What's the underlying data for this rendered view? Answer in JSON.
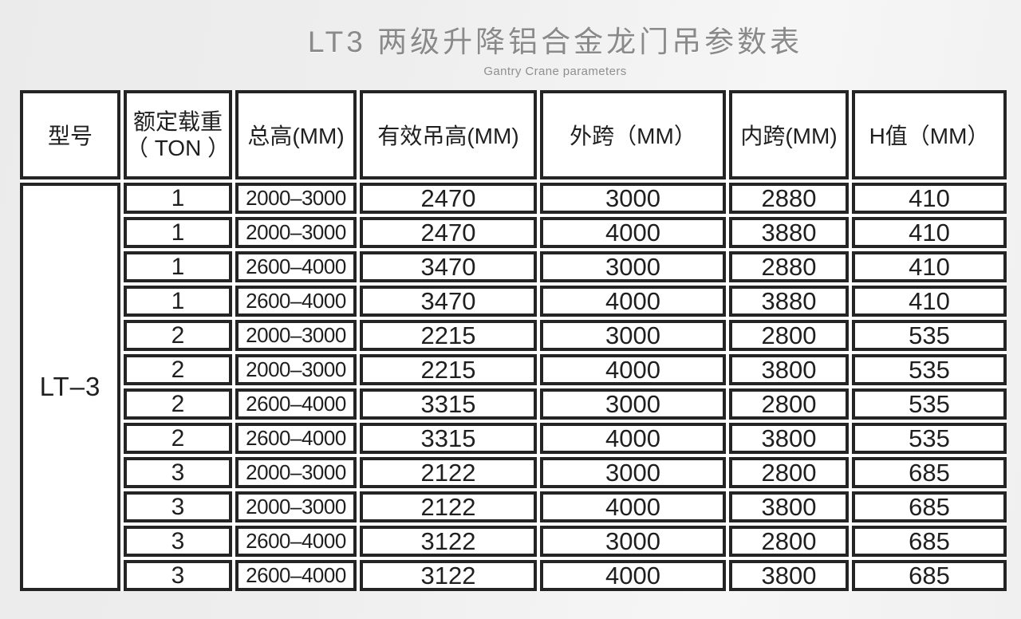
{
  "header": {
    "title": "LT3 两级升降铝合金龙门吊参数表",
    "subtitle": "Gantry Crane parameters"
  },
  "table": {
    "model": "LT–3",
    "columns": [
      {
        "label": "型号"
      },
      {
        "label": "额定载重",
        "label2": "（ TON ）"
      },
      {
        "label": "总高(MM)"
      },
      {
        "label": "有效吊高(MM)"
      },
      {
        "label": "外跨（MM）"
      },
      {
        "label": "内跨(MM)"
      },
      {
        "label": "H值（MM）"
      }
    ],
    "rows": [
      {
        "ton": "1",
        "total_height": "2000–3000",
        "lift_height": "2470",
        "outer_span": "3000",
        "inner_span": "2880",
        "h_value": "410"
      },
      {
        "ton": "1",
        "total_height": "2000–3000",
        "lift_height": "2470",
        "outer_span": "4000",
        "inner_span": "3880",
        "h_value": "410"
      },
      {
        "ton": "1",
        "total_height": "2600–4000",
        "lift_height": "3470",
        "outer_span": "3000",
        "inner_span": "2880",
        "h_value": "410"
      },
      {
        "ton": "1",
        "total_height": "2600–4000",
        "lift_height": "3470",
        "outer_span": "4000",
        "inner_span": "3880",
        "h_value": "410"
      },
      {
        "ton": "2",
        "total_height": "2000–3000",
        "lift_height": "2215",
        "outer_span": "3000",
        "inner_span": "2800",
        "h_value": "535"
      },
      {
        "ton": "2",
        "total_height": "2000–3000",
        "lift_height": "2215",
        "outer_span": "4000",
        "inner_span": "3800",
        "h_value": "535"
      },
      {
        "ton": "2",
        "total_height": "2600–4000",
        "lift_height": "3315",
        "outer_span": "3000",
        "inner_span": "2800",
        "h_value": "535"
      },
      {
        "ton": "2",
        "total_height": "2600–4000",
        "lift_height": "3315",
        "outer_span": "4000",
        "inner_span": "3800",
        "h_value": "535"
      },
      {
        "ton": "3",
        "total_height": "2000–3000",
        "lift_height": "2122",
        "outer_span": "3000",
        "inner_span": "2800",
        "h_value": "685"
      },
      {
        "ton": "3",
        "total_height": "2000–3000",
        "lift_height": "2122",
        "outer_span": "4000",
        "inner_span": "3800",
        "h_value": "685"
      },
      {
        "ton": "3",
        "total_height": "2600–4000",
        "lift_height": "3122",
        "outer_span": "3000",
        "inner_span": "2800",
        "h_value": "685"
      },
      {
        "ton": "3",
        "total_height": "2600–4000",
        "lift_height": "3122",
        "outer_span": "4000",
        "inner_span": "3800",
        "h_value": "685"
      }
    ],
    "colors": {
      "border": "#242424",
      "text": "#1f1f1f",
      "title": "#8a8a8a",
      "background": "#eeeeee"
    }
  }
}
